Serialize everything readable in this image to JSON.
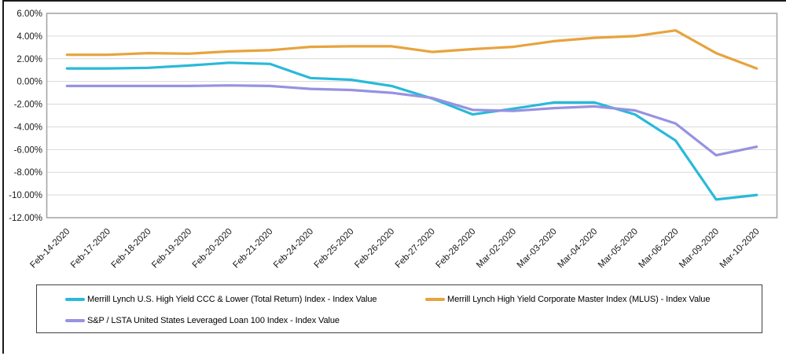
{
  "y_axis": {
    "tick_labels": [
      "6.00%",
      "4.00%",
      "2.00%",
      "0.00%",
      "-2.00%",
      "-4.00%",
      "-6.00%",
      "-8.00%",
      "-10.00%",
      "-12.00%"
    ]
  },
  "chart_data": {
    "type": "line",
    "categories": [
      "Feb-14-2020",
      "Feb-17-2020",
      "Feb-18-2020",
      "Feb-19-2020",
      "Feb-20-2020",
      "Feb-21-2020",
      "Feb-24-2020",
      "Feb-25-2020",
      "Feb-26-2020",
      "Feb-27-2020",
      "Feb-28-2020",
      "Mar-02-2020",
      "Mar-03-2020",
      "Mar-04-2020",
      "Mar-05-2020",
      "Mar-06-2020",
      "Mar-09-2020",
      "Mar-10-2020"
    ],
    "series": [
      {
        "name": "Merrill Lynch U.S. High Yield CCC & Lower (Total Return) Index - Index Value",
        "color": "#29B9D9",
        "values": [
          1.15,
          1.15,
          1.2,
          1.4,
          1.65,
          1.55,
          0.3,
          0.15,
          -0.4,
          -1.5,
          -2.9,
          -2.4,
          -1.85,
          -1.85,
          -2.9,
          -5.2,
          -10.4,
          -10.0
        ]
      },
      {
        "name": "Merrill Lynch High Yield Corporate Master Index (MLUS) - Index Value",
        "color": "#E8A33D",
        "values": [
          2.35,
          2.35,
          2.5,
          2.45,
          2.65,
          2.75,
          3.05,
          3.1,
          3.1,
          2.6,
          2.85,
          3.05,
          3.55,
          3.85,
          4.0,
          4.5,
          2.5,
          1.15
        ]
      },
      {
        "name": "S&P / LSTA United States Leveraged Loan 100 Index - Index Value",
        "color": "#9792E0",
        "values": [
          -0.4,
          -0.4,
          -0.4,
          -0.4,
          -0.35,
          -0.4,
          -0.65,
          -0.75,
          -1.0,
          -1.45,
          -2.5,
          -2.6,
          -2.35,
          -2.2,
          -2.55,
          -3.7,
          -6.5,
          -5.75
        ]
      }
    ],
    "ylim": [
      -12,
      6
    ],
    "y_tick_step": 2,
    "grid": true,
    "legend_position": "bottom-box",
    "title": "",
    "xlabel": "",
    "ylabel": ""
  },
  "style": {
    "grid_color": "#d9d9d9",
    "plot_border_color": "#a6a6a6",
    "axis_text_color": "#1a1a1a"
  }
}
